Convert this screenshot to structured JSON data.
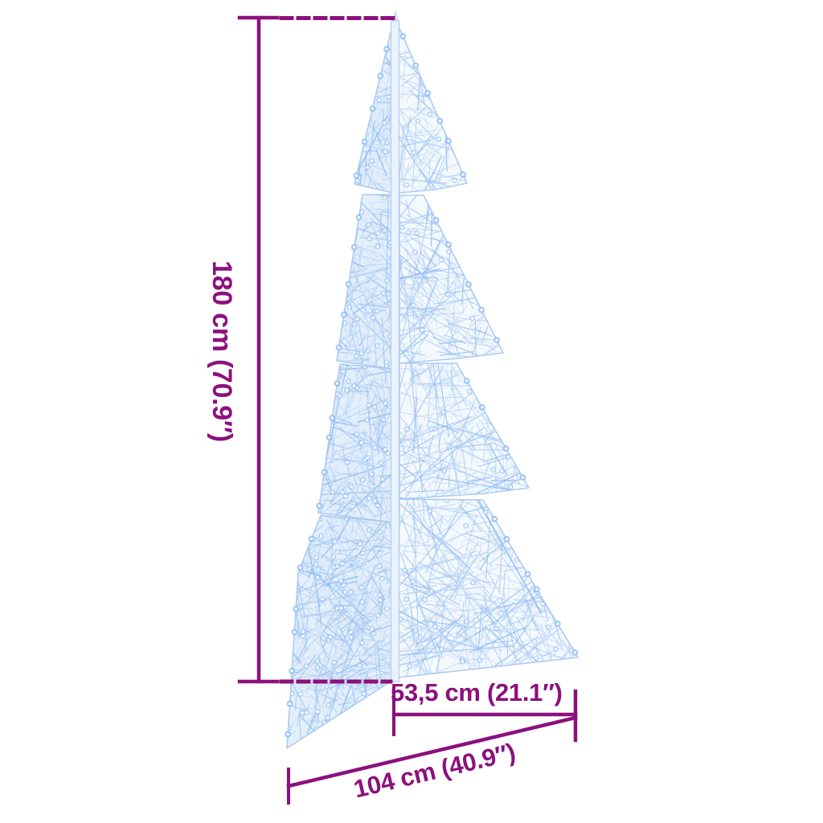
{
  "page": {
    "background": "#ffffff"
  },
  "figure": {
    "accent_color": "#8c107d",
    "labels": {
      "height": "180 cm (70.9″)",
      "depth": "53,5 cm (21.1″)",
      "width": "104 cm (40.9″)"
    },
    "tree": {
      "mesh_color": "#a9c9f1",
      "mesh_color_light": "#cadef8",
      "mesh_color_deep": "#8fbbf0",
      "panel_fill_front": "#f4f9fe",
      "panel_fill_side": "#e3effb",
      "led_halo": "#8ab9f3",
      "led_mid": "#bcd9f8",
      "led_core": "#ffffff",
      "trunk_fill": "#eaf2fc",
      "trunk_stroke": "#b3cef2",
      "outline": "#a5c6ef"
    }
  }
}
